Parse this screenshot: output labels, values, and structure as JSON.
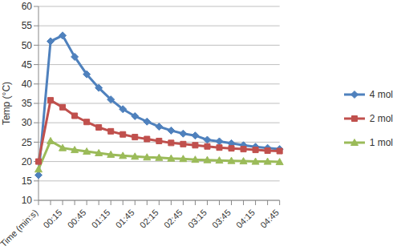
{
  "chart_data": {
    "type": "line",
    "x_label": "",
    "y_label": "Temp (°C)",
    "categories": [
      "Time (min:s)",
      null,
      "00:15",
      null,
      "00:45",
      null,
      "01:15",
      null,
      "01:45",
      null,
      "02:15",
      null,
      "02:45",
      null,
      "03:15",
      null,
      "03:45",
      null,
      "04:15",
      null,
      "04:45"
    ],
    "series": [
      {
        "name": "4 mol",
        "color": "#4F81BD",
        "marker": "diamond",
        "values": [
          16.5,
          51,
          52.5,
          47,
          42.5,
          39,
          36,
          33.5,
          31.7,
          30.3,
          29,
          28,
          27.2,
          26.7,
          25.6,
          25.2,
          24.7,
          24.2,
          23.8,
          23.5,
          23.2
        ]
      },
      {
        "name": "2 mol",
        "color": "#C0504D",
        "marker": "square",
        "values": [
          20,
          35.8,
          34,
          31.8,
          30.2,
          28.8,
          27.8,
          27,
          26.3,
          25.8,
          25.3,
          24.8,
          24.5,
          24.2,
          23.9,
          23.6,
          23.4,
          23.2,
          23,
          22.8,
          22.7
        ]
      },
      {
        "name": "1 mol",
        "color": "#9BBB59",
        "marker": "triangle",
        "values": [
          18,
          25.3,
          23.5,
          23,
          22.6,
          22.2,
          21.8,
          21.5,
          21.3,
          21.1,
          21,
          20.8,
          20.7,
          20.5,
          20.4,
          20.3,
          20.2,
          20.1,
          20,
          20,
          19.9
        ]
      }
    ],
    "ylim": [
      10,
      60
    ],
    "yticks": [
      10,
      15,
      20,
      25,
      30,
      35,
      40,
      45,
      50,
      55,
      60
    ],
    "grid": true,
    "legend": "right"
  }
}
